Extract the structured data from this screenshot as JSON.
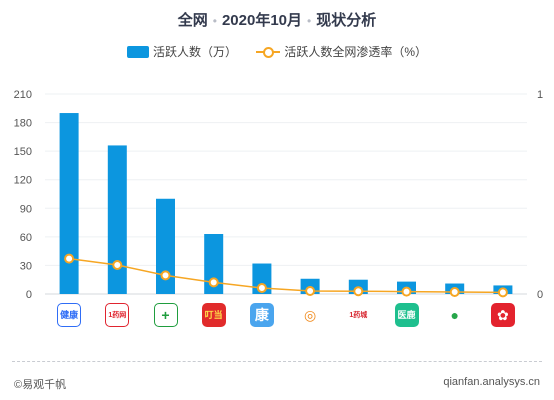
{
  "title": {
    "scope": "全网",
    "date": "2020年10月",
    "topic": "现状分析"
  },
  "legend": {
    "bars": "活跃人数（万）",
    "line": "活跃人数全网渗透率（%）"
  },
  "colors": {
    "bar": "#0c96df",
    "line": "#f6a623",
    "title": "#333a4d"
  },
  "chart_data": {
    "type": "bar",
    "categories": [
      "app-1",
      "app-2",
      "app-3",
      "app-4",
      "app-5",
      "app-6",
      "app-7",
      "app-8",
      "app-9",
      "app-10"
    ],
    "series": [
      {
        "type": "bar",
        "axis": "left",
        "values": [
          190,
          156,
          100,
          63,
          32,
          16,
          15,
          13,
          11,
          9
        ]
      },
      {
        "type": "line",
        "axis": "right",
        "values": [
          0.177,
          0.145,
          0.093,
          0.058,
          0.03,
          0.015,
          0.014,
          0.012,
          0.01,
          0.008
        ]
      }
    ],
    "y_left": {
      "min": 0,
      "max": 210,
      "ticks": [
        "0",
        "30",
        "60",
        "90",
        "120",
        "150",
        "180",
        "210"
      ]
    },
    "y_right": {
      "min": 0,
      "max": 1,
      "ticks": [
        "0",
        "1"
      ]
    },
    "grid": true,
    "legend_position": "top-center"
  },
  "apps": [
    {
      "icon": "baidu-health-app-icon",
      "text": "健康",
      "bg": "#ffffff",
      "fg": "#2f6df6",
      "border": "#2f6df6"
    },
    {
      "icon": "1yao-app-icon",
      "text": "1药网",
      "bg": "#ffffff",
      "fg": "#e0242f",
      "border": "#e0242f"
    },
    {
      "icon": "green-cross-app-icon",
      "text": "+",
      "bg": "#ffffff",
      "fg": "#1f9d3e",
      "border": "#1f9d3e"
    },
    {
      "icon": "dingdang-app-icon",
      "text": "叮当",
      "bg": "#e12b2b",
      "fg": "#ffe14a",
      "border": "#e12b2b"
    },
    {
      "icon": "kang-app-icon",
      "text": "康",
      "bg": "#4aa5ee",
      "fg": "#ffffff",
      "border": "#4aa5ee"
    },
    {
      "icon": "orange-swirl-app-icon",
      "text": "◎",
      "bg": "#ffffff",
      "fg": "#f08a1c",
      "border": "#ffffff"
    },
    {
      "icon": "111-app-icon",
      "text": "1药城",
      "bg": "#ffffff",
      "fg": "#d7262f",
      "border": "#ffffff"
    },
    {
      "icon": "yiliao-app-icon",
      "text": "医鹿",
      "bg": "#1ebf8e",
      "fg": "#ffffff",
      "border": "#1ebf8e"
    },
    {
      "icon": "green-leaf-app-icon",
      "text": "●",
      "bg": "#ffffff",
      "fg": "#26a64a",
      "border": "#ffffff"
    },
    {
      "icon": "red-mascot-app-icon",
      "text": "✿",
      "bg": "#e3232e",
      "fg": "#ffffff",
      "border": "#e3232e"
    }
  ],
  "footer": {
    "left": "©易观千帆",
    "right": "qianfan.analysys.cn"
  }
}
